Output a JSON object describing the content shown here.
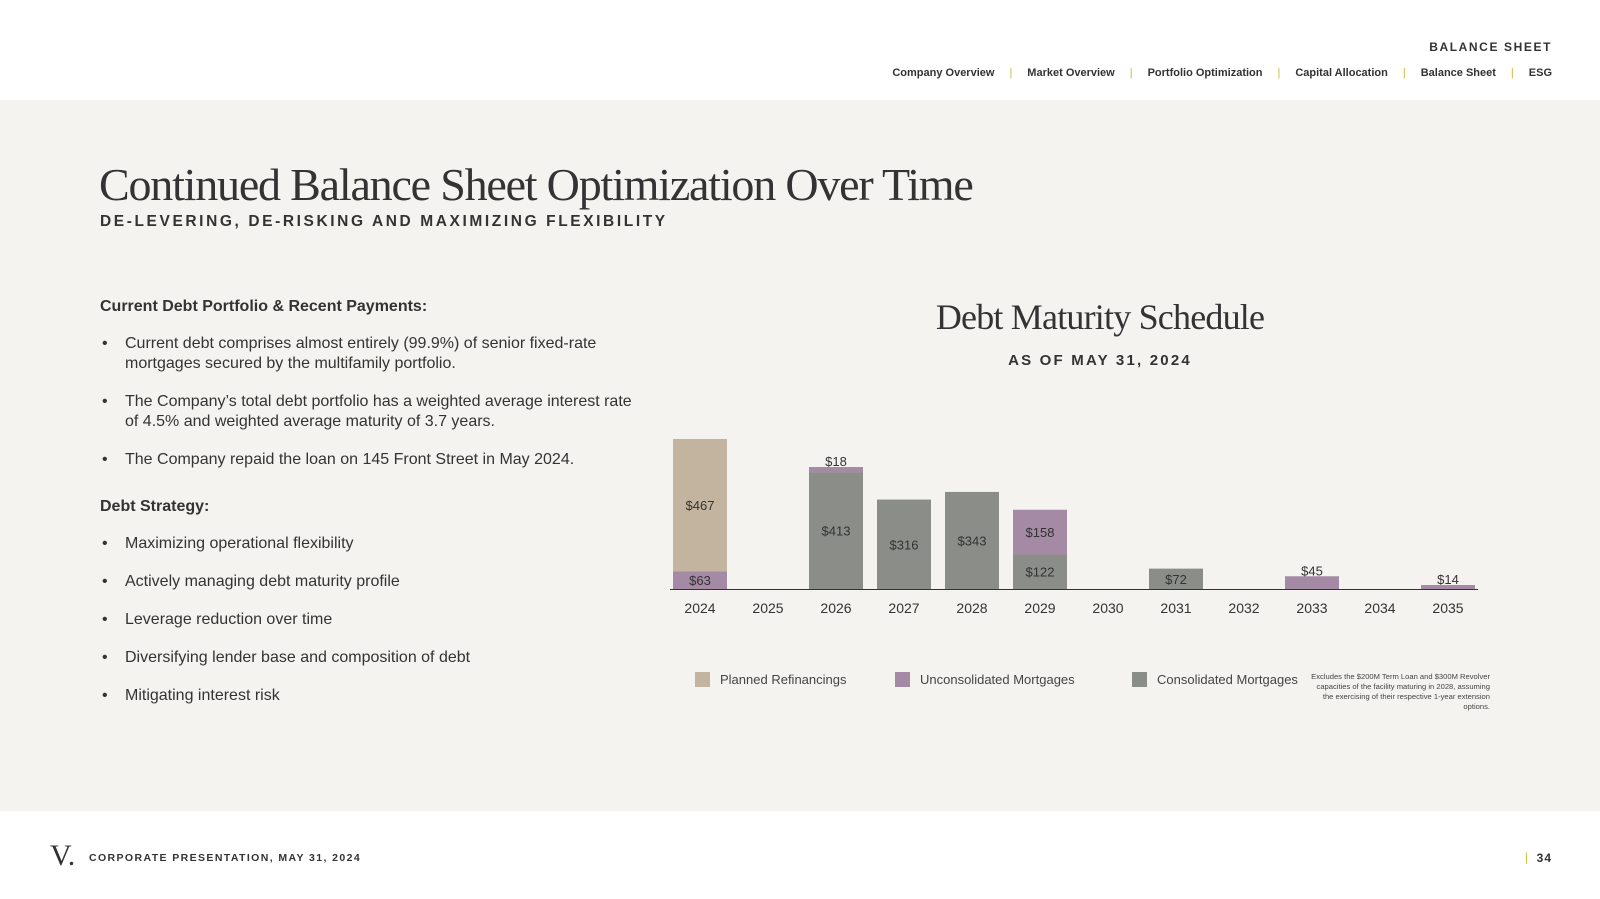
{
  "header": {
    "section": "BALANCE SHEET",
    "nav": [
      "Company Overview",
      "Market Overview",
      "Portfolio Optimization",
      "Capital Allocation",
      "Balance Sheet",
      "ESG"
    ]
  },
  "main": {
    "title": "Continued Balance Sheet Optimization Over Time",
    "subtitle": "DE-LEVERING, DE-RISKING AND MAXIMIZING FLEXIBILITY"
  },
  "left": {
    "section1_title": "Current Debt Portfolio & Recent Payments:",
    "section1_bullets": [
      "Current debt comprises almost entirely (99.9%) of senior fixed-rate mortgages secured by the multifamily portfolio.",
      "The Company’s total debt portfolio has a weighted average interest rate of 4.5% and weighted average maturity of 3.7 years.",
      "The Company repaid the loan on 145 Front Street in May 2024."
    ],
    "section2_title": "Debt Strategy:",
    "section2_bullets": [
      "Maximizing operational flexibility",
      "Actively managing debt maturity profile",
      "Leverage reduction over time",
      "Diversifying lender base and composition of debt",
      "Mitigating interest risk"
    ],
    "bullet_char": "•"
  },
  "chart_data": {
    "type": "bar",
    "stacked": true,
    "title": "Debt Maturity Schedule",
    "subtitle": "AS OF MAY 31, 2024",
    "categories": [
      "2024",
      "2025",
      "2026",
      "2027",
      "2028",
      "2029",
      "2030",
      "2031",
      "2032",
      "2033",
      "2034",
      "2035"
    ],
    "series": [
      {
        "name": "Consolidated Mortgages",
        "color": "#8b8d88",
        "values": [
          0,
          0,
          413,
          316,
          343,
          122,
          0,
          72,
          0,
          0,
          0,
          0
        ]
      },
      {
        "name": "Unconsolidated Mortgages",
        "color": "#a48aa4",
        "values": [
          63,
          0,
          18,
          0,
          0,
          158,
          0,
          0,
          0,
          45,
          0,
          14
        ]
      },
      {
        "name": "Planned Refinancings",
        "color": "#c3b49f",
        "values": [
          467,
          0,
          0,
          0,
          0,
          0,
          0,
          0,
          0,
          0,
          0,
          0
        ]
      }
    ],
    "labels": [
      [
        "",
        "$63",
        "$467"
      ],
      [
        "",
        "",
        ""
      ],
      [
        "$413",
        "$18",
        ""
      ],
      [
        "$316",
        "",
        ""
      ],
      [
        "$343",
        "",
        ""
      ],
      [
        "$122",
        "$158",
        ""
      ],
      [
        "",
        "",
        ""
      ],
      [
        "$72",
        "",
        ""
      ],
      [
        "",
        "",
        ""
      ],
      [
        "",
        "$45",
        ""
      ],
      [
        "",
        "",
        ""
      ],
      [
        "",
        "$14",
        ""
      ]
    ],
    "legend_order": [
      "Planned Refinancings",
      "Unconsolidated Mortgages",
      "Consolidated Mortgages"
    ],
    "legend_placement": "bottom",
    "grid": false,
    "footnote": "Excludes the $200M Term Loan and $300M Revolver capacities of the facility maturing in 2028, assuming the exercising of their respective 1-year extension options."
  },
  "footer": {
    "logo": "V.",
    "text": "CORPORATE PRESENTATION, MAY 31, 2024",
    "page_sep": "|",
    "page": "34"
  }
}
